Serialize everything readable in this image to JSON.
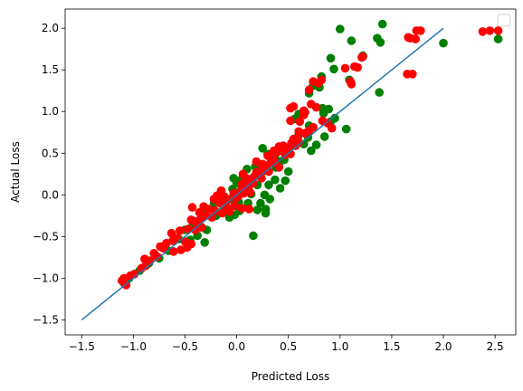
{
  "chart_data": {
    "type": "scatter",
    "title": "",
    "xlabel": "Predicted Loss",
    "ylabel": "Actual Loss",
    "xlim": [
      -1.66,
      2.7
    ],
    "ylim": [
      -1.68,
      2.23
    ],
    "xticks": [
      -1.5,
      -1.0,
      -0.5,
      0.0,
      0.5,
      1.0,
      1.5,
      2.0,
      2.5
    ],
    "xtick_labels": [
      "−1.5",
      "−1.0",
      "−0.5",
      "0.0",
      "0.5",
      "1.0",
      "1.5",
      "2.0",
      "2.5"
    ],
    "yticks": [
      -1.5,
      -1.0,
      -0.5,
      0.0,
      0.5,
      1.0,
      1.5,
      2.0
    ],
    "ytick_labels": [
      "−1.5",
      "−1.0",
      "−0.5",
      "0.0",
      "0.5",
      "1.0",
      "1.5",
      "2.0"
    ],
    "grid": false,
    "legend": {
      "placement": "top-right",
      "entries": []
    },
    "reference_line": {
      "color": "#1f77b4",
      "x": [
        -1.5,
        2.0
      ],
      "y": [
        -1.5,
        2.0
      ]
    },
    "series": [
      {
        "color": "#008000",
        "points": [
          [
            1.41,
            2.05
          ],
          [
            1.0,
            1.99
          ],
          [
            1.36,
            1.88
          ],
          [
            1.39,
            1.83
          ],
          [
            2.0,
            1.82
          ],
          [
            2.53,
            1.87
          ],
          [
            1.11,
            1.85
          ],
          [
            0.91,
            1.64
          ],
          [
            0.94,
            1.51
          ],
          [
            1.22,
            1.67
          ],
          [
            0.82,
            1.42
          ],
          [
            1.38,
            1.23
          ],
          [
            0.8,
            1.29
          ],
          [
            0.74,
            1.31
          ],
          [
            0.7,
            1.22
          ],
          [
            1.09,
            1.38
          ],
          [
            0.83,
            1.04
          ],
          [
            0.89,
            1.03
          ],
          [
            0.84,
            0.98
          ],
          [
            0.91,
            0.88
          ],
          [
            1.06,
            0.79
          ],
          [
            0.95,
            0.92
          ],
          [
            0.56,
            0.91
          ],
          [
            0.6,
            0.97
          ],
          [
            0.7,
            0.83
          ],
          [
            0.6,
            0.72
          ],
          [
            0.69,
            0.69
          ],
          [
            0.85,
            0.7
          ],
          [
            0.77,
            0.6
          ],
          [
            0.72,
            0.53
          ],
          [
            0.65,
            0.61
          ],
          [
            0.55,
            0.62
          ],
          [
            0.51,
            0.57
          ],
          [
            0.37,
            0.47
          ],
          [
            0.46,
            0.42
          ],
          [
            0.48,
            0.5
          ],
          [
            0.25,
            0.56
          ],
          [
            0.3,
            0.49
          ],
          [
            0.42,
            0.4
          ],
          [
            0.5,
            0.28
          ],
          [
            0.38,
            0.33
          ],
          [
            0.26,
            0.3
          ],
          [
            0.18,
            0.34
          ],
          [
            0.1,
            0.31
          ],
          [
            0.22,
            0.24
          ],
          [
            0.37,
            0.18
          ],
          [
            0.47,
            0.17
          ],
          [
            0.42,
            0.08
          ],
          [
            0.31,
            0.12
          ],
          [
            0.2,
            0.12
          ],
          [
            0.12,
            0.16
          ],
          [
            0.04,
            0.18
          ],
          [
            -0.03,
            0.2
          ],
          [
            0.0,
            0.14
          ],
          [
            -0.04,
            0.07
          ],
          [
            0.05,
            0.04
          ],
          [
            0.14,
            0.01
          ],
          [
            0.27,
            0.0
          ],
          [
            0.32,
            -0.05
          ],
          [
            0.23,
            -0.1
          ],
          [
            0.11,
            -0.1
          ],
          [
            0.02,
            -0.09
          ],
          [
            -0.06,
            -0.05
          ],
          [
            -0.16,
            -0.02
          ],
          [
            -0.22,
            -0.1
          ],
          [
            -0.12,
            -0.15
          ],
          [
            0.03,
            -0.19
          ],
          [
            0.2,
            -0.18
          ],
          [
            0.28,
            -0.17
          ],
          [
            0.28,
            -0.22
          ],
          [
            -0.02,
            -0.24
          ],
          [
            -0.07,
            -0.27
          ],
          [
            -0.2,
            -0.25
          ],
          [
            -0.31,
            -0.2
          ],
          [
            -0.37,
            -0.33
          ],
          [
            -0.29,
            -0.42
          ],
          [
            -0.43,
            -0.38
          ],
          [
            -0.5,
            -0.42
          ],
          [
            -0.38,
            -0.49
          ],
          [
            -0.31,
            -0.57
          ],
          [
            -0.45,
            -0.54
          ],
          [
            -0.56,
            -0.53
          ],
          [
            0.16,
            -0.49
          ],
          [
            -0.66,
            -0.67
          ],
          [
            -0.75,
            -0.76
          ],
          [
            -0.85,
            -0.82
          ],
          [
            -0.94,
            -0.91
          ],
          [
            -1.04,
            -1.0
          ],
          [
            -1.09,
            -1.06
          ]
        ]
      },
      {
        "color": "#ff0000",
        "points": [
          [
            2.53,
            1.97
          ],
          [
            2.45,
            1.97
          ],
          [
            2.38,
            1.96
          ],
          [
            1.78,
            1.97
          ],
          [
            1.74,
            1.97
          ],
          [
            1.73,
            1.87
          ],
          [
            1.68,
            1.88
          ],
          [
            1.66,
            1.89
          ],
          [
            1.65,
            1.45
          ],
          [
            1.7,
            1.45
          ],
          [
            1.22,
            1.66
          ],
          [
            1.21,
            1.65
          ],
          [
            1.17,
            1.53
          ],
          [
            1.14,
            1.54
          ],
          [
            1.05,
            1.52
          ],
          [
            1.1,
            1.36
          ],
          [
            1.11,
            1.33
          ],
          [
            0.82,
            1.38
          ],
          [
            0.79,
            1.34
          ],
          [
            0.74,
            1.36
          ],
          [
            0.7,
            1.26
          ],
          [
            0.77,
            1.05
          ],
          [
            0.72,
            1.09
          ],
          [
            0.65,
            1.01
          ],
          [
            0.66,
            0.99
          ],
          [
            0.65,
            0.96
          ],
          [
            0.52,
            1.04
          ],
          [
            0.55,
            1.06
          ],
          [
            0.52,
            0.89
          ],
          [
            0.61,
            0.88
          ],
          [
            0.83,
            0.89
          ],
          [
            0.88,
            0.86
          ],
          [
            0.92,
            0.8
          ],
          [
            0.74,
            0.81
          ],
          [
            0.7,
            0.77
          ],
          [
            0.66,
            0.74
          ],
          [
            0.6,
            0.76
          ],
          [
            0.59,
            0.67
          ],
          [
            0.55,
            0.67
          ],
          [
            0.53,
            0.62
          ],
          [
            0.6,
            0.63
          ],
          [
            0.45,
            0.59
          ],
          [
            0.43,
            0.55
          ],
          [
            0.4,
            0.52
          ],
          [
            0.47,
            0.48
          ],
          [
            0.52,
            0.49
          ],
          [
            0.35,
            0.45
          ],
          [
            0.33,
            0.39
          ],
          [
            0.38,
            0.38
          ],
          [
            0.29,
            0.35
          ],
          [
            0.25,
            0.37
          ],
          [
            0.23,
            0.3
          ],
          [
            0.28,
            0.29
          ],
          [
            0.2,
            0.25
          ],
          [
            0.24,
            0.2
          ],
          [
            0.17,
            0.22
          ],
          [
            0.14,
            0.19
          ],
          [
            0.09,
            0.2
          ],
          [
            0.16,
            0.14
          ],
          [
            0.12,
            0.11
          ],
          [
            0.05,
            0.13
          ],
          [
            0.09,
            0.09
          ],
          [
            0.04,
            0.05
          ],
          [
            0.13,
            0.03
          ],
          [
            0.07,
            0.02
          ],
          [
            -0.03,
            0.02
          ],
          [
            0.02,
            -0.01
          ],
          [
            -0.01,
            -0.04
          ],
          [
            -0.09,
            -0.06
          ],
          [
            -0.12,
            -0.02
          ],
          [
            -0.19,
            -0.01
          ],
          [
            -0.22,
            -0.05
          ],
          [
            -0.16,
            -0.1
          ],
          [
            -0.1,
            -0.14
          ],
          [
            -0.02,
            -0.13
          ],
          [
            0.05,
            -0.16
          ],
          [
            0.12,
            -0.17
          ],
          [
            -0.07,
            -0.2
          ],
          [
            -0.14,
            -0.22
          ],
          [
            -0.21,
            -0.19
          ],
          [
            -0.24,
            -0.27
          ],
          [
            -0.3,
            -0.25
          ],
          [
            -0.35,
            -0.29
          ],
          [
            -0.4,
            -0.32
          ],
          [
            -0.44,
            -0.3
          ],
          [
            -0.34,
            -0.39
          ],
          [
            -0.4,
            -0.42
          ],
          [
            -0.47,
            -0.41
          ],
          [
            -0.55,
            -0.43
          ],
          [
            -0.58,
            -0.52
          ],
          [
            -0.5,
            -0.56
          ],
          [
            -0.44,
            -0.59
          ],
          [
            -0.48,
            -0.63
          ],
          [
            -0.54,
            -0.66
          ],
          [
            -0.61,
            -0.68
          ],
          [
            -0.71,
            -0.64
          ],
          [
            -0.77,
            -0.74
          ],
          [
            -0.84,
            -0.79
          ],
          [
            -0.88,
            -0.85
          ],
          [
            -0.92,
            -0.88
          ],
          [
            -0.99,
            -0.95
          ],
          [
            -1.03,
            -0.97
          ],
          [
            -1.09,
            -1.0
          ],
          [
            -1.07,
            -1.08
          ],
          [
            -1.11,
            -1.03
          ],
          [
            -0.89,
            -0.77
          ],
          [
            -0.74,
            -0.62
          ],
          [
            -0.8,
            -0.7
          ],
          [
            -0.68,
            -0.58
          ],
          [
            -0.62,
            -0.55
          ],
          [
            -0.63,
            -0.46
          ],
          [
            -0.36,
            -0.21
          ],
          [
            -0.27,
            -0.17
          ],
          [
            -0.32,
            -0.14
          ],
          [
            -0.43,
            -0.15
          ],
          [
            -0.15,
            0.05
          ],
          [
            0.06,
            0.25
          ],
          [
            0.19,
            0.27
          ],
          [
            0.31,
            0.28
          ],
          [
            0.41,
            0.33
          ],
          [
            0.49,
            0.55
          ],
          [
            0.57,
            0.59
          ],
          [
            0.3,
            0.47
          ],
          [
            0.36,
            0.53
          ],
          [
            0.41,
            0.58
          ],
          [
            0.19,
            0.4
          ]
        ]
      }
    ]
  }
}
